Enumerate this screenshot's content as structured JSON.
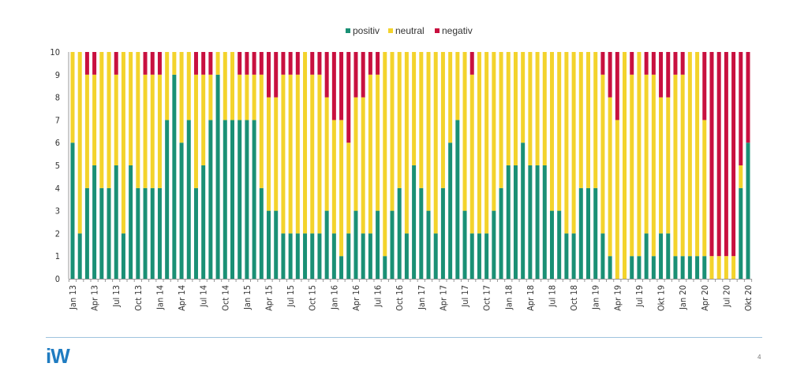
{
  "chart_data": {
    "type": "bar",
    "stacked": true,
    "title": "",
    "xlabel": "",
    "ylabel": "",
    "ylim": [
      0,
      10
    ],
    "yticks": [
      "0",
      "1",
      "2",
      "3",
      "4",
      "5",
      "6",
      "7",
      "8",
      "9",
      "10"
    ],
    "legend_position": "top-center",
    "tick_labels": [
      "Jan 13",
      "Apr 13",
      "Jul 13",
      "Oct 13",
      "Jan 14",
      "Apr 14",
      "Jul 14",
      "Oct 14",
      "Jan 15",
      "Apr 15",
      "Jul 15",
      "Oct 15",
      "Jan 16",
      "Apr 16",
      "Jul 16",
      "Oct 16",
      "Jan 17",
      "Apr 17",
      "Jul 17",
      "Oct 17",
      "Jan 18",
      "Apr 18",
      "Jul 18",
      "Oct 18",
      "Jan 19",
      "Apr 19",
      "Jul 19",
      "Okt 19",
      "Jan 20",
      "Apr 20",
      "Jul 20",
      "Okt 20"
    ],
    "tick_every_n_months": 3,
    "series": [
      {
        "name": "positiv",
        "color": "#1a9075",
        "values": [
          6,
          2,
          4,
          5,
          4,
          4,
          5,
          2,
          5,
          4,
          4,
          4,
          4,
          7,
          9,
          6,
          7,
          4,
          5,
          7,
          9,
          7,
          7,
          7,
          7,
          7,
          4,
          3,
          3,
          2,
          2,
          2,
          2,
          2,
          2,
          3,
          2,
          1,
          2,
          3,
          2,
          2,
          3,
          1,
          3,
          4,
          2,
          5,
          4,
          3,
          2,
          4,
          6,
          7,
          3,
          2,
          2,
          2,
          3,
          4,
          5,
          5,
          6,
          5,
          5,
          5,
          3,
          3,
          2,
          2,
          4,
          4,
          4,
          2,
          1,
          0,
          0,
          1,
          1,
          2,
          1,
          2,
          2,
          1,
          1,
          1,
          1,
          1,
          0,
          0,
          0,
          0,
          4,
          6
        ]
      },
      {
        "name": "neutral",
        "color": "#f3d32c",
        "values": [
          4,
          8,
          5,
          4,
          6,
          6,
          4,
          8,
          5,
          6,
          5,
          5,
          5,
          3,
          1,
          4,
          3,
          5,
          4,
          2,
          1,
          3,
          3,
          2,
          2,
          2,
          5,
          5,
          5,
          7,
          7,
          7,
          8,
          7,
          7,
          5,
          5,
          6,
          4,
          5,
          6,
          7,
          6,
          9,
          7,
          6,
          8,
          5,
          6,
          7,
          8,
          6,
          4,
          3,
          7,
          7,
          8,
          8,
          7,
          6,
          5,
          5,
          4,
          5,
          5,
          5,
          7,
          7,
          8,
          8,
          6,
          6,
          6,
          7,
          7,
          7,
          10,
          8,
          9,
          7,
          8,
          6,
          6,
          8,
          8,
          9,
          9,
          6,
          1,
          1,
          1,
          1,
          1,
          0
        ]
      },
      {
        "name": "negativ",
        "color": "#c8103f",
        "values": [
          0,
          0,
          1,
          1,
          0,
          0,
          1,
          0,
          0,
          0,
          1,
          1,
          1,
          0,
          0,
          0,
          0,
          1,
          1,
          1,
          0,
          0,
          0,
          1,
          1,
          1,
          1,
          2,
          2,
          1,
          1,
          1,
          0,
          1,
          1,
          2,
          3,
          3,
          4,
          2,
          2,
          1,
          1,
          0,
          0,
          0,
          0,
          0,
          0,
          0,
          0,
          0,
          0,
          0,
          0,
          1,
          0,
          0,
          0,
          0,
          0,
          0,
          0,
          0,
          0,
          0,
          0,
          0,
          0,
          0,
          0,
          0,
          0,
          1,
          2,
          3,
          0,
          1,
          0,
          1,
          1,
          2,
          2,
          1,
          1,
          0,
          0,
          3,
          9,
          9,
          9,
          9,
          5,
          4
        ]
      }
    ]
  },
  "footer": {
    "logo": "iW",
    "page_number": "4"
  }
}
